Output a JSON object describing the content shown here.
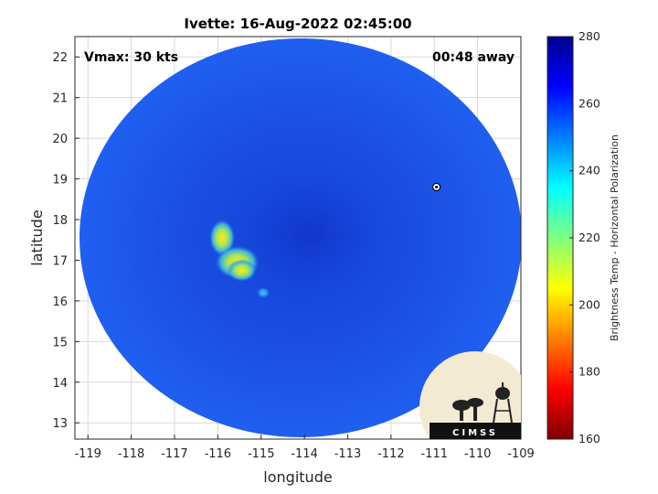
{
  "chart_data": {
    "type": "heatmap",
    "title": "Ivette: 16-Aug-2022 02:45:00",
    "xlabel": "longitude",
    "ylabel": "latitude",
    "xlim": [
      -119.3,
      -109
    ],
    "ylim": [
      12.6,
      22.5
    ],
    "x_ticks": [
      -119,
      -118,
      -117,
      -116,
      -115,
      -114,
      -113,
      -112,
      -111,
      -110,
      -109
    ],
    "y_ticks": [
      13,
      14,
      15,
      16,
      17,
      18,
      19,
      20,
      21,
      22
    ],
    "x_tick_labels": [
      "-119",
      "-118",
      "-117",
      "-116",
      "-115",
      "-114",
      "-113",
      "-112",
      "-111",
      "-110",
      "-109"
    ],
    "y_tick_labels": [
      "13",
      "14",
      "15",
      "16",
      "17",
      "18",
      "19",
      "20",
      "21",
      "22"
    ],
    "grid": true,
    "annotations": {
      "vmax": "Vmax: 30 kts",
      "time_away": "00:48 away"
    },
    "colorbar": {
      "label": "Brightness Temp - Horizontal Polarization",
      "range": [
        160,
        280
      ],
      "ticks": [
        160,
        180,
        200,
        220,
        240,
        260,
        280
      ],
      "tick_labels": [
        "160",
        "180",
        "200",
        "220",
        "240",
        "260",
        "280"
      ],
      "colormap": "jet"
    },
    "swath": {
      "center_lon": -114.1,
      "center_lat": 17.4,
      "background_value": 262
    },
    "features": [
      {
        "name": "warm band west",
        "lon": -115.9,
        "lat": 17.55,
        "value": 215
      },
      {
        "name": "warm core",
        "lon": -115.55,
        "lat": 16.95,
        "value": 208
      },
      {
        "name": "warm patch south",
        "lon": -115.45,
        "lat": 16.75,
        "value": 222
      },
      {
        "name": "small patch",
        "lon": -114.95,
        "lat": 16.2,
        "value": 240
      }
    ],
    "storm_marker": {
      "lon": -110.95,
      "lat": 18.8
    }
  },
  "logo": {
    "text": "CIMSS"
  },
  "colors": {
    "swath_base": "#1a52e6",
    "warm_core": "#f2f01a"
  }
}
